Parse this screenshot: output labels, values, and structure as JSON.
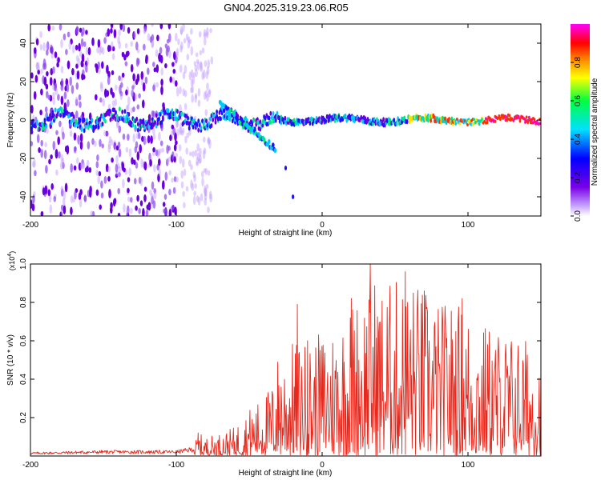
{
  "figure": {
    "title": "GN04.2025.319.23.06.R05"
  },
  "chart_data": [
    {
      "type": "heatmap",
      "name": "spectrogram",
      "xlabel": "Height of straight line (km)",
      "ylabel": "Frequency (Hz)",
      "xlim": [
        -200,
        150
      ],
      "ylim": [
        -50,
        50
      ],
      "x_ticks": [
        -200,
        -100,
        0,
        100
      ],
      "x_tick_labels": [
        "-200",
        "-100",
        "0",
        "100"
      ],
      "y_ticks": [
        -40,
        -20,
        0,
        20,
        40
      ],
      "y_tick_labels": [
        "-40",
        "-20",
        "0",
        "20",
        "40"
      ],
      "colorbar": {
        "label": "Normalized spectral amplitude",
        "range": [
          0,
          1
        ],
        "ticks": [
          0.0,
          0.2,
          0.4,
          0.6,
          0.8
        ],
        "tick_labels": [
          "0.0",
          "0.2",
          "0.4",
          "0.6",
          "0.8"
        ],
        "colors": [
          "#ffffff",
          "#7a00e6",
          "#0000ff",
          "#00e0ff",
          "#00ff40",
          "#ffff00",
          "#ff8000",
          "#ff0000",
          "#ff00ff"
        ]
      },
      "features": {
        "main_band_freq_hz": 0,
        "main_band_x_range_km": [
          -200,
          150
        ],
        "noisy_region_x_range_km": [
          -200,
          -100
        ],
        "branch_x_range_km": [
          -70,
          -32
        ],
        "branch_start_freq_hz": 8,
        "branch_end_freq_hz": -15,
        "tail_points": [
          [
            -25,
            -25
          ],
          [
            -20,
            -40
          ]
        ]
      }
    },
    {
      "type": "line",
      "name": "snr",
      "xlabel": "Height of straight line (km)",
      "ylabel": "SNR (10 * v/v)",
      "multiplier_label": "(x10",
      "multiplier_exp": "4",
      "multiplier_close": ")",
      "xlim": [
        -200,
        150
      ],
      "ylim": [
        0,
        1.0
      ],
      "x_ticks": [
        -200,
        -100,
        0,
        100
      ],
      "x_tick_labels": [
        "-200",
        "-100",
        "0",
        "100"
      ],
      "y_ticks": [
        0.2,
        0.4,
        0.6,
        0.8,
        1.0
      ],
      "y_tick_labels": [
        "0.2",
        "0.4",
        "0.6",
        "0.8",
        "1.0"
      ],
      "series": [
        {
          "name": "SNR",
          "color": "#e8281c",
          "envelope_x": [
            -200,
            -150,
            -100,
            -88,
            -85,
            -80,
            -70,
            -60,
            -50,
            -42,
            -38,
            -35,
            -32,
            -30,
            -20,
            -10,
            0,
            10,
            20,
            30,
            33,
            40,
            50,
            60,
            70,
            80,
            90,
            100,
            110,
            120,
            130,
            140,
            150
          ],
          "envelope_y": [
            0.02,
            0.03,
            0.03,
            0.05,
            0.12,
            0.1,
            0.12,
            0.15,
            0.25,
            0.3,
            0.35,
            0.35,
            0.5,
            0.55,
            0.6,
            0.6,
            0.65,
            0.72,
            0.82,
            0.9,
            1.0,
            0.9,
            0.93,
            0.95,
            0.88,
            0.8,
            0.82,
            0.78,
            0.7,
            0.68,
            0.65,
            0.62,
            0.58
          ],
          "peaks": [
            [
              -85,
              0.12
            ],
            [
              -17,
              0.79
            ],
            [
              -10,
              0.6
            ],
            [
              20,
              0.82
            ],
            [
              33,
              1.0
            ],
            [
              57,
              0.96
            ],
            [
              70,
              0.86
            ],
            [
              96,
              0.82
            ]
          ]
        }
      ]
    }
  ]
}
